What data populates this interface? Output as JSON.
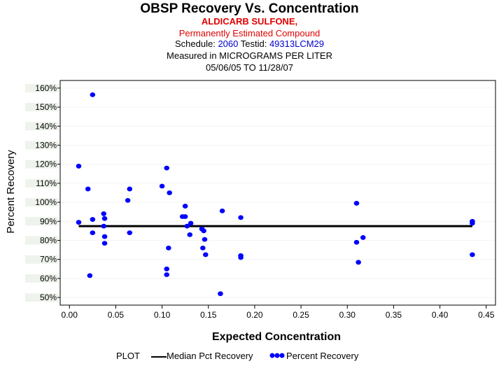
{
  "header": {
    "title": "OBSP Recovery Vs. Concentration",
    "analyte": "ALDICARB SULFONE,",
    "status": "Permanently Estimated Compound",
    "schedule_label": "Schedule:",
    "schedule_value": "2060",
    "testid_label": "Testid:",
    "testid_value": "49313LCM29",
    "measured": "Measured in  MICROGRAMS PER LITER",
    "date_range": "05/06/05 TO 11/28/07"
  },
  "legend": {
    "title": "PLOT",
    "median_label": "Median Pct Recovery",
    "points_label": "Percent Recovery"
  },
  "colors": {
    "points": "#0000ff",
    "median_line": "#000000",
    "band": "#eef3ec"
  },
  "chart_data": {
    "type": "scatter",
    "title": "OBSP Recovery Vs. Concentration",
    "xlabel": "Expected Concentration",
    "ylabel": "Percent Recovery",
    "xlim": [
      -0.01,
      0.46
    ],
    "ylim": [
      46,
      164
    ],
    "x_ticks": [
      0.0,
      0.05,
      0.1,
      0.15,
      0.2,
      0.25,
      0.3,
      0.35,
      0.4,
      0.45
    ],
    "x_tick_labels": [
      "0.00",
      "0.05",
      "0.10",
      "0.15",
      "0.20",
      "0.25",
      "0.30",
      "0.35",
      "0.40",
      "0.45"
    ],
    "y_ticks": [
      50,
      60,
      70,
      80,
      90,
      100,
      110,
      120,
      130,
      140,
      150,
      160
    ],
    "y_tick_labels": [
      "50%",
      "60%",
      "70%",
      "80%",
      "90%",
      "100%",
      "110%",
      "120%",
      "130%",
      "140%",
      "150%",
      "160%"
    ],
    "median": {
      "name": "Median Pct Recovery",
      "value": 87.5,
      "x_start": 0.01,
      "x_end": 0.435
    },
    "series": [
      {
        "name": "Percent Recovery",
        "points": [
          [
            0.01,
            119
          ],
          [
            0.01,
            89.5
          ],
          [
            0.02,
            107
          ],
          [
            0.022,
            61.5
          ],
          [
            0.025,
            156.5
          ],
          [
            0.025,
            91
          ],
          [
            0.025,
            84
          ],
          [
            0.037,
            94
          ],
          [
            0.038,
            91.5
          ],
          [
            0.037,
            87.5
          ],
          [
            0.038,
            82
          ],
          [
            0.038,
            78.5
          ],
          [
            0.063,
            101
          ],
          [
            0.065,
            107
          ],
          [
            0.065,
            84
          ],
          [
            0.1,
            108.5
          ],
          [
            0.105,
            118
          ],
          [
            0.108,
            105
          ],
          [
            0.107,
            76
          ],
          [
            0.105,
            65
          ],
          [
            0.105,
            62
          ],
          [
            0.122,
            92.5
          ],
          [
            0.125,
            92.5
          ],
          [
            0.125,
            98
          ],
          [
            0.127,
            87.5
          ],
          [
            0.13,
            83
          ],
          [
            0.131,
            89
          ],
          [
            0.143,
            86
          ],
          [
            0.145,
            85
          ],
          [
            0.144,
            76
          ],
          [
            0.146,
            80.5
          ],
          [
            0.147,
            72.5
          ],
          [
            0.163,
            52
          ],
          [
            0.165,
            95.5
          ],
          [
            0.185,
            92
          ],
          [
            0.185,
            72
          ],
          [
            0.185,
            71
          ],
          [
            0.31,
            99.5
          ],
          [
            0.31,
            79
          ],
          [
            0.312,
            68.5
          ],
          [
            0.317,
            81.5
          ],
          [
            0.435,
            90
          ],
          [
            0.435,
            89
          ],
          [
            0.435,
            72.5
          ]
        ]
      }
    ]
  }
}
